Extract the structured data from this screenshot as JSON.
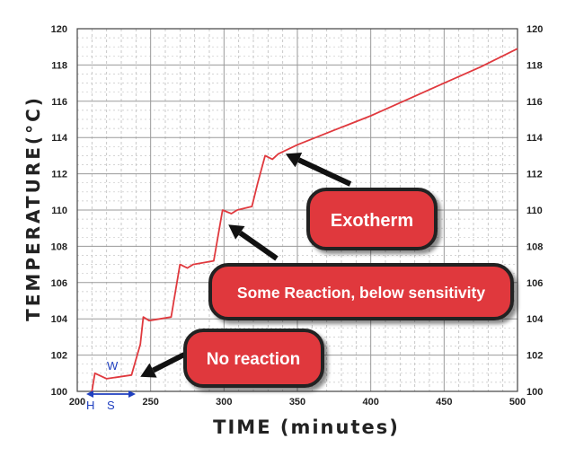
{
  "chart_data": {
    "type": "line",
    "title": "",
    "xlabel": "TIME (minutes)",
    "ylabel": "TEMPERATURE(°C)",
    "xlim": [
      200,
      500
    ],
    "ylim": [
      100,
      120
    ],
    "x_ticks": [
      "200",
      "250",
      "300",
      "350",
      "400",
      "450",
      "500"
    ],
    "y_ticks": [
      "100",
      "102",
      "104",
      "106",
      "108",
      "110",
      "112",
      "114",
      "116",
      "118",
      "120"
    ],
    "y_ticks_right": [
      "100",
      "102",
      "104",
      "106",
      "108",
      "110",
      "112",
      "114",
      "116",
      "118",
      "120"
    ],
    "grid": true,
    "line_color": "#e0393e",
    "series": [
      {
        "name": "temperature",
        "x": [
          210,
          212,
          220,
          237,
          243,
          245,
          249,
          264,
          270,
          275,
          279,
          293,
          299,
          305,
          309,
          319,
          323,
          328,
          333,
          337,
          350,
          375,
          400,
          425,
          450,
          475,
          500
        ],
        "y": [
          100,
          101,
          100.7,
          100.9,
          102.6,
          104.1,
          103.9,
          104.1,
          107,
          106.8,
          107,
          107.2,
          110,
          109.8,
          110,
          110.2,
          111.5,
          113,
          112.8,
          113.1,
          113.6,
          114.4,
          115.2,
          116.1,
          117,
          117.9,
          118.9
        ]
      }
    ],
    "heat_wait_search": {
      "w_label": "W",
      "h_label": "H",
      "s_label": "S",
      "color": "#1f3fbf"
    },
    "annotations": [
      {
        "id": "exotherm",
        "text": "Exotherm",
        "target_x": 342,
        "target_y": 113.1
      },
      {
        "id": "some-reaction",
        "text": "Some Reaction, below sensitivity",
        "target_x": 303,
        "target_y": 109.2
      },
      {
        "id": "no-reaction",
        "text": "No reaction",
        "target_x": 243,
        "target_y": 100.8
      }
    ],
    "callout_fill": "#e0393e",
    "callout_border": "#222222"
  }
}
